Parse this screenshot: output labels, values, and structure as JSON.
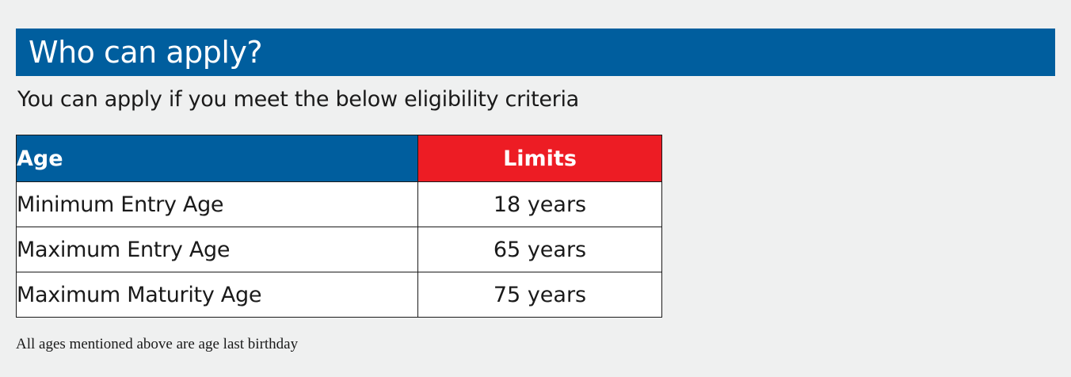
{
  "header": {
    "title": "Who can apply?"
  },
  "subtitle": "You can apply if you meet the below eligibility criteria",
  "table": {
    "headers": {
      "age": "Age",
      "limits": "Limits"
    },
    "rows": [
      {
        "age": "Minimum Entry Age",
        "limit": "18 years"
      },
      {
        "age": "Maximum Entry Age",
        "limit": "65 years"
      },
      {
        "age": "Maximum Maturity Age",
        "limit": "75 years"
      }
    ]
  },
  "footnote": "All ages mentioned above are age last birthday",
  "colors": {
    "title_bar": "#005e9e",
    "age_header": "#005e9e",
    "limits_header": "#ed1c24",
    "background": "#eff0f0"
  }
}
